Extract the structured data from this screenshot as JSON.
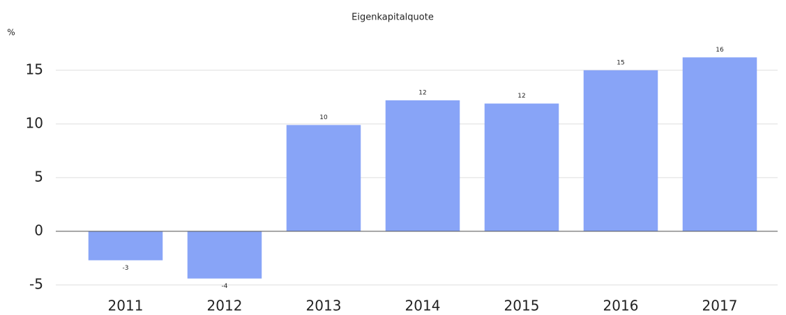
{
  "chart_data": {
    "type": "bar",
    "title": "Eigenkapitalquote",
    "y_label": "%",
    "categories": [
      "2011",
      "2012",
      "2013",
      "2014",
      "2015",
      "2016",
      "2017"
    ],
    "values": [
      -2.7,
      -4.4,
      9.9,
      12.2,
      11.9,
      15.0,
      16.2
    ],
    "value_labels": [
      "-3",
      "-4",
      "10",
      "12",
      "12",
      "15",
      "16"
    ],
    "color": "#88a4f7",
    "ylim": [
      -5.2,
      17
    ],
    "yticks": [
      -5,
      0,
      5,
      10,
      15
    ],
    "grid": true
  }
}
